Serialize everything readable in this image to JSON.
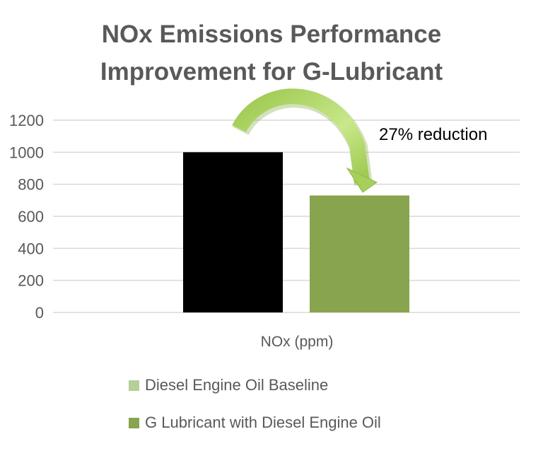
{
  "chart_data": {
    "type": "bar",
    "title_lines": [
      "NOx Emissions Performance",
      "Improvement for G-Lubricant"
    ],
    "categories": [
      "NOx (ppm)"
    ],
    "series": [
      {
        "name": "Diesel Engine Oil Baseline",
        "values": [
          1000
        ],
        "bar_color": "#000000",
        "legend_color": "#B5CF96"
      },
      {
        "name": "G Lubricant with Diesel Engine Oil",
        "values": [
          730
        ],
        "bar_color": "#88A44F",
        "legend_color": "#88A44F"
      }
    ],
    "ylim": [
      0,
      1200
    ],
    "yticks": [
      "0",
      "200",
      "400",
      "600",
      "800",
      "1000",
      "1200"
    ],
    "grid": true,
    "legend_position": "bottom",
    "annotation": {
      "text": "27% reduction",
      "arrow_color": "#A6D05A"
    }
  }
}
